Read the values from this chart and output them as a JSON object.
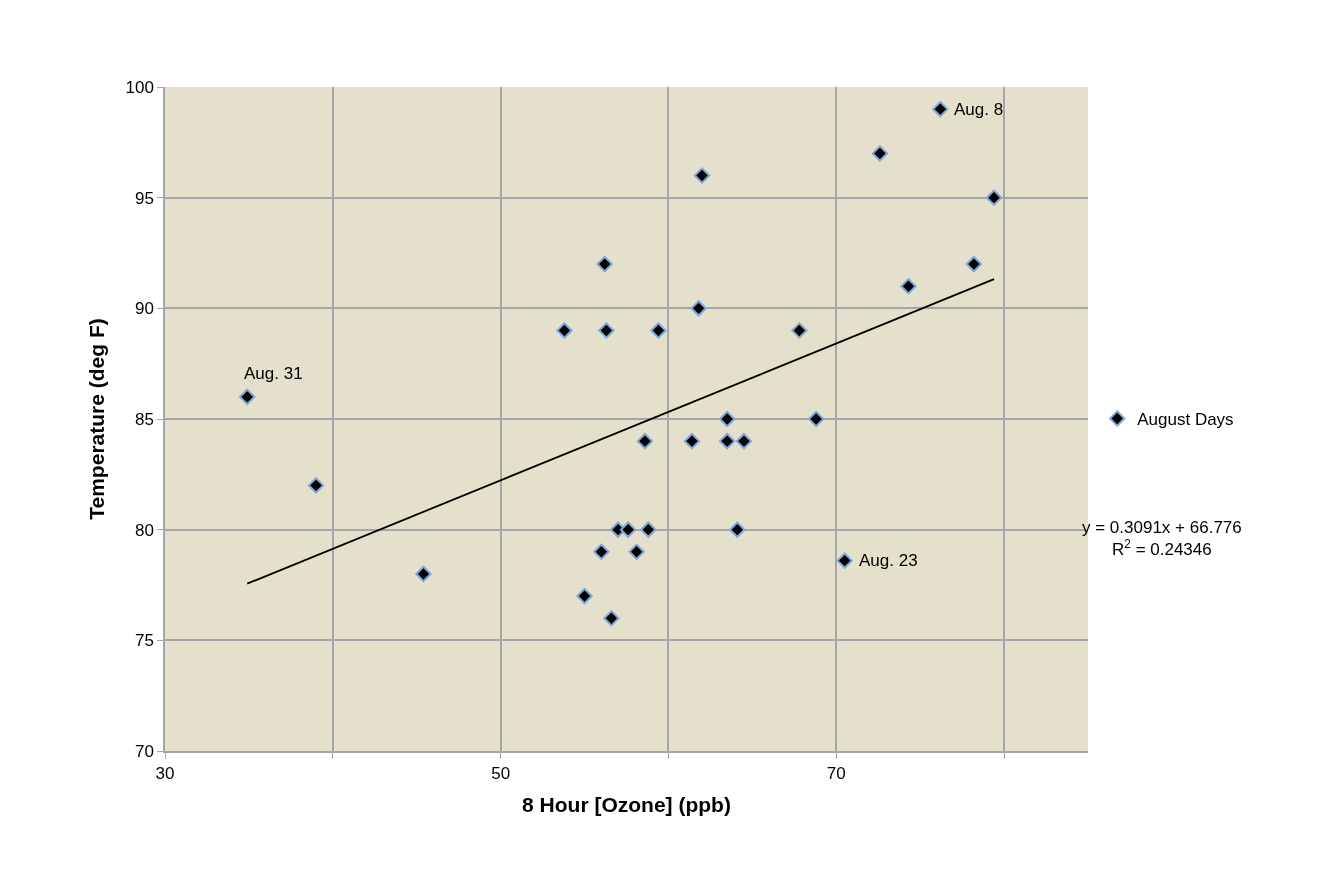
{
  "chart_data": {
    "type": "scatter",
    "xlabel": "8 Hour [Ozone] (ppb)",
    "ylabel": "Temperature (deg F)",
    "xlim": [
      30,
      85
    ],
    "xticks": [
      30,
      {
        "value": 40,
        "label": null
      },
      50,
      {
        "value": 60,
        "label": null
      },
      70,
      {
        "value": 80,
        "label": null
      }
    ],
    "ylim": [
      70,
      100
    ],
    "yticks": [
      70,
      75,
      80,
      85,
      90,
      95,
      100
    ],
    "grid": true,
    "legend": "right",
    "marker": "diamond",
    "series": [
      {
        "name": "August Days",
        "color": "#000000",
        "x": [
          34.9,
          39.0,
          45.4,
          56.2,
          53.8,
          56.3,
          57.0,
          57.6,
          56.0,
          58.1,
          55.0,
          56.6,
          58.8,
          58.6,
          59.4,
          62.0,
          61.8,
          61.4,
          63.5,
          63.5,
          64.5,
          64.1,
          67.8,
          68.8,
          70.5,
          72.6,
          76.2,
          74.3,
          78.2,
          79.4
        ],
        "values": [
          86,
          82,
          78,
          92,
          89,
          89,
          80,
          80,
          79,
          79,
          77,
          76,
          80,
          84,
          89,
          96,
          90,
          84,
          85,
          84,
          84,
          80,
          89,
          85,
          78.6,
          97,
          99,
          91,
          92,
          95
        ]
      },
      {
        "type": "line",
        "marker": "none",
        "color": "#000000",
        "x": [
          34.9,
          79.4
        ],
        "values": [
          77.56,
          91.32
        ]
      }
    ],
    "annotations": [
      {
        "text": "Aug. 31",
        "x": 34.9,
        "y": 86
      },
      {
        "text": "Aug. 8",
        "x": 76.2,
        "y": 99
      },
      {
        "text": "Aug. 23",
        "x": 70.5,
        "y": 78.6
      },
      "y = 0.3091x + 66.776\nR$^{2}$ = 0.24346"
    ]
  }
}
